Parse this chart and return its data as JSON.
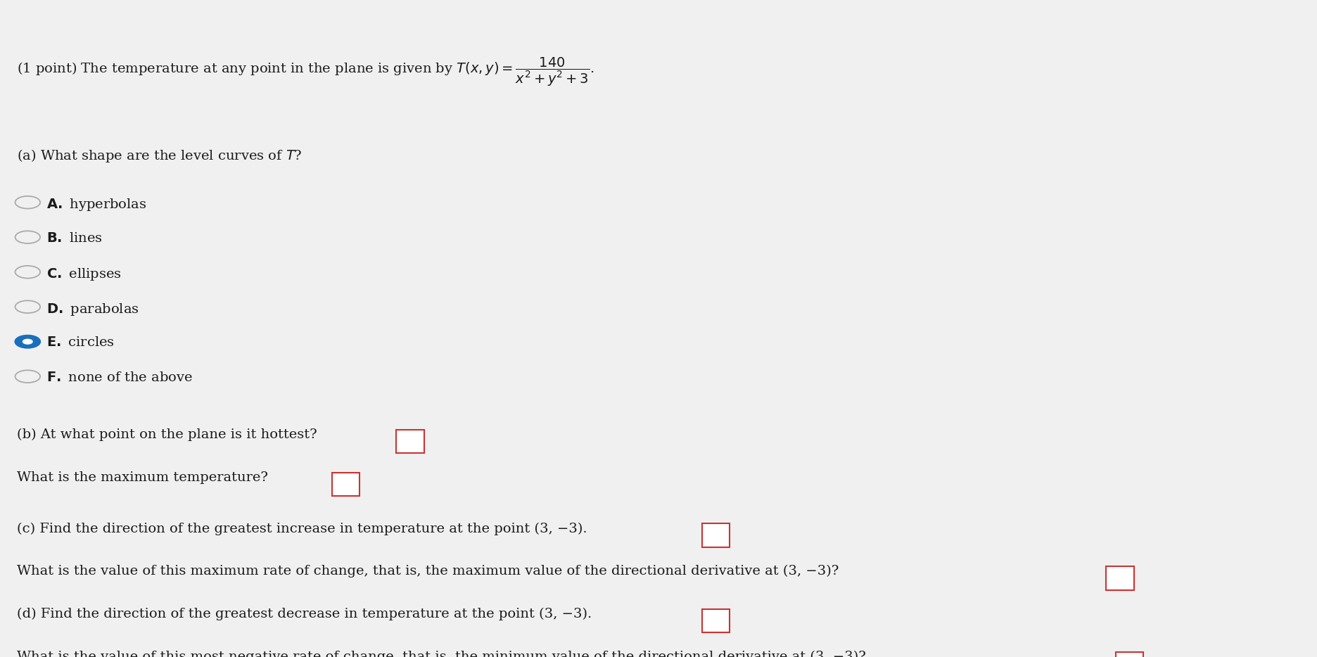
{
  "background_color": "#f0f0f0",
  "text_color": "#1a1a1a",
  "selected_color": "#1a6fbd",
  "box_color": "#cc3333",
  "font_size": 14.0,
  "choices": [
    {
      "letter": "A",
      "text": "hyperbolas",
      "selected": false
    },
    {
      "letter": "B",
      "text": "lines",
      "selected": false
    },
    {
      "letter": "C",
      "text": "ellipses",
      "selected": false
    },
    {
      "letter": "D",
      "text": "parabolas",
      "selected": false
    },
    {
      "letter": "E",
      "text": "circles",
      "selected": true
    },
    {
      "letter": "F",
      "text": "none of the above",
      "selected": false
    }
  ],
  "part_b_line1": "(b) At what point on the plane is it hottest?",
  "part_b_line2": "What is the maximum temperature?",
  "part_c_line1": "(c) Find the direction of the greatest increase in temperature at the point (3, −3).",
  "part_c_line2": "What is the value of this maximum rate of change, that is, the maximum value of the directional derivative at (3, −3)?",
  "part_d_line1": "(d) Find the direction of the greatest decrease in temperature at the point (3, −3).",
  "part_d_line2": "What is the value of this most negative rate of change, that is, the minimum value of the directional derivative at (3, −3)?"
}
